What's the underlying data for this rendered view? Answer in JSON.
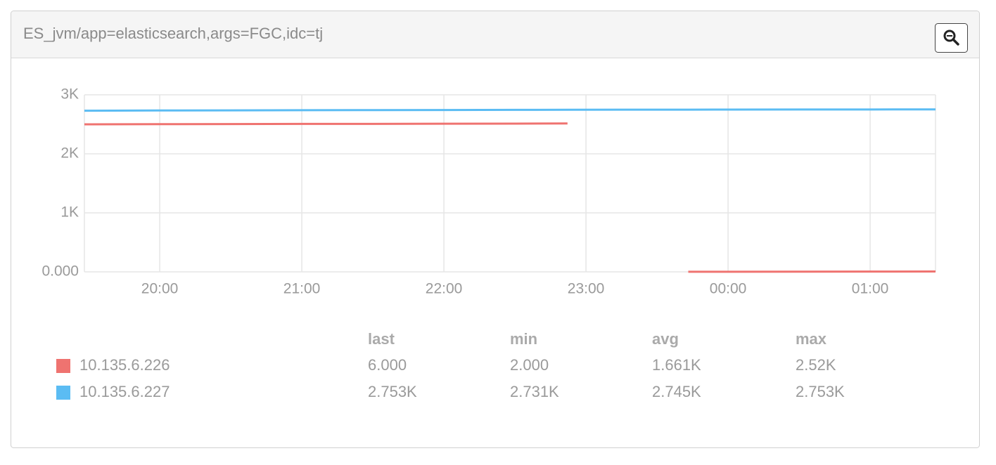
{
  "chart_data": {
    "type": "line",
    "title": "ES_jvm/app=elasticsearch,args=FGC,idc=tj",
    "x": [
      19.47,
      20,
      20.5,
      21,
      21.5,
      22,
      22.5,
      22.87,
      23.3,
      23.72,
      24,
      24.5,
      25,
      25.46
    ],
    "series": [
      {
        "name": "10.135.6.226",
        "color": "#ef7370",
        "values": [
          2500,
          2503,
          2505,
          2507,
          2508,
          2510,
          2512,
          2515,
          null,
          2,
          2,
          3,
          4,
          6
        ],
        "stats": [
          "6.000",
          "2.000",
          "1.661K",
          "2.52K"
        ]
      },
      {
        "name": "10.135.6.227",
        "color": "#5bbcf3",
        "values": [
          2731,
          2735,
          2737,
          2739,
          2741,
          2743,
          2745,
          2747,
          2748,
          2749,
          2750,
          2751,
          2752,
          2753
        ],
        "stats": [
          "2.753K",
          "2.731K",
          "2.745K",
          "2.753K"
        ]
      }
    ],
    "legend_columns": [
      "last",
      "min",
      "avg",
      "max"
    ],
    "xlim": [
      19.47,
      25.46
    ],
    "xticks": [
      {
        "value": 20,
        "label": "20:00"
      },
      {
        "value": 21,
        "label": "21:00"
      },
      {
        "value": 22,
        "label": "22:00"
      },
      {
        "value": 23,
        "label": "23:00"
      },
      {
        "value": 24,
        "label": "00:00"
      },
      {
        "value": 25,
        "label": "01:00"
      }
    ],
    "ylim": [
      0,
      3000
    ],
    "yticks": [
      {
        "value": 0,
        "label": "0.000"
      },
      {
        "value": 1000,
        "label": "1K"
      },
      {
        "value": 2000,
        "label": "2K"
      },
      {
        "value": 3000,
        "label": "3K"
      }
    ],
    "grid": true
  }
}
